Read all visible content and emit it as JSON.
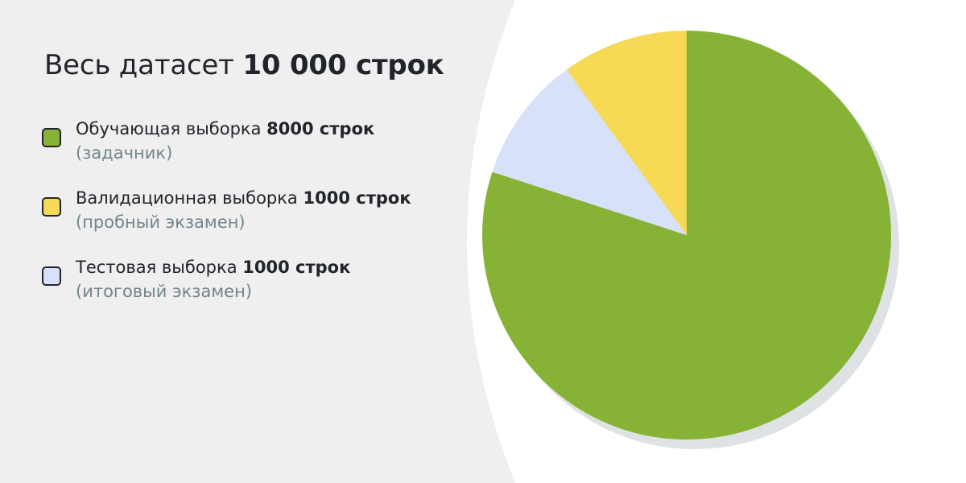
{
  "title": {
    "prefix": "Весь датасет",
    "value": "10 000 строк"
  },
  "legend": [
    {
      "name": "Обучающая выборка",
      "value": "8000 строк",
      "note": "(задачник)",
      "color": "#86b336"
    },
    {
      "name": "Валидационная выборка",
      "value": "1000 строк",
      "note": "(пробный экзамен)",
      "color": "#f6d955"
    },
    {
      "name": "Тестовая выборка",
      "value": "1000 строк",
      "note": "(итоговый экзамен)",
      "color": "#d7e1fa"
    }
  ],
  "chart_data": {
    "type": "pie",
    "title": "Весь датасет 10 000 строк",
    "total": 10000,
    "slices": [
      {
        "label": "Обучающая выборка",
        "value": 8000,
        "color": "#86b336"
      },
      {
        "label": "Тестовая выборка",
        "value": 1000,
        "color": "#d7e1fa"
      },
      {
        "label": "Валидационная выборка",
        "value": 1000,
        "color": "#f6d955"
      }
    ],
    "start": "12 o'clock",
    "direction": "clockwise"
  },
  "colors": {
    "background": "#efefef",
    "panel": "#ffffff",
    "shadow": "#dfe2e4",
    "text": "#21252b",
    "muted_text": "#72858d"
  }
}
